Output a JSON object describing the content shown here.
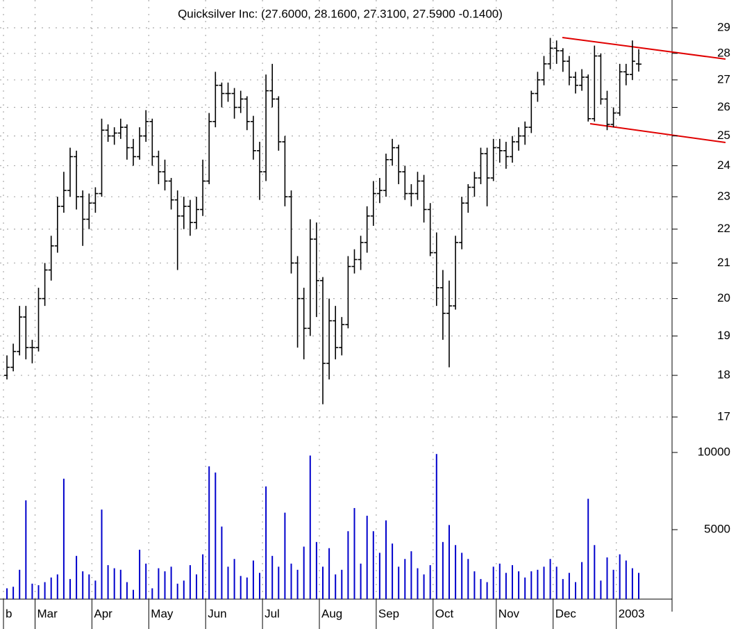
{
  "chart_data": {
    "type": "ohlc",
    "subtitle": "Quicksilver Inc: (27.6000, 28.1600, 27.3100, 27.5900 -0.1400)",
    "categories": [
      "b",
      null,
      null,
      null,
      null,
      "Mar",
      null,
      null,
      null,
      null,
      null,
      null,
      null,
      null,
      "Apr",
      null,
      null,
      null,
      null,
      null,
      null,
      null,
      null,
      "May",
      null,
      null,
      null,
      null,
      null,
      null,
      null,
      null,
      "Jun",
      null,
      null,
      null,
      null,
      null,
      null,
      null,
      null,
      "Jul",
      null,
      null,
      null,
      null,
      null,
      null,
      null,
      null,
      "Aug",
      null,
      null,
      null,
      null,
      null,
      null,
      null,
      null,
      "Sep",
      null,
      null,
      null,
      null,
      null,
      null,
      null,
      null,
      "Oct",
      null,
      null,
      null,
      null,
      null,
      null,
      null,
      null,
      null,
      "Nov",
      null,
      null,
      null,
      null,
      null,
      null,
      null,
      null,
      "Dec",
      null,
      null,
      null,
      null,
      null,
      null,
      null,
      null,
      null,
      "2003",
      null,
      null,
      null
    ],
    "ohlc": [
      [
        18.0,
        18.5,
        17.9,
        18.2
      ],
      [
        18.2,
        18.8,
        18.1,
        18.6
      ],
      [
        18.6,
        19.8,
        18.5,
        19.5
      ],
      [
        19.5,
        19.8,
        18.4,
        18.7
      ],
      [
        18.7,
        18.9,
        18.3,
        18.7
      ],
      [
        18.7,
        20.3,
        18.6,
        20.0
      ],
      [
        20.0,
        21.0,
        19.8,
        20.8
      ],
      [
        20.8,
        21.8,
        20.5,
        21.5
      ],
      [
        21.5,
        23.0,
        21.3,
        22.7
      ],
      [
        22.7,
        23.8,
        22.5,
        23.2
      ],
      [
        23.2,
        24.6,
        23.0,
        24.3
      ],
      [
        24.3,
        24.5,
        22.6,
        23.0
      ],
      [
        23.0,
        23.2,
        21.5,
        22.3
      ],
      [
        22.3,
        23.1,
        22.0,
        22.8
      ],
      [
        22.8,
        23.3,
        22.5,
        23.1
      ],
      [
        23.1,
        25.6,
        23.0,
        25.2
      ],
      [
        25.2,
        25.4,
        24.8,
        25.0
      ],
      [
        25.0,
        25.3,
        24.7,
        25.1
      ],
      [
        25.1,
        25.6,
        24.9,
        25.3
      ],
      [
        25.3,
        25.4,
        24.2,
        24.6
      ],
      [
        24.6,
        24.9,
        24.0,
        24.3
      ],
      [
        24.3,
        25.3,
        24.2,
        25.0
      ],
      [
        25.0,
        25.9,
        24.8,
        25.5
      ],
      [
        25.5,
        25.6,
        24.0,
        24.3
      ],
      [
        24.3,
        24.5,
        23.4,
        23.8
      ],
      [
        23.8,
        24.2,
        23.2,
        23.5
      ],
      [
        23.5,
        23.6,
        22.6,
        22.9
      ],
      [
        22.9,
        23.2,
        20.8,
        22.4
      ],
      [
        22.4,
        23.0,
        22.0,
        22.7
      ],
      [
        22.7,
        22.9,
        21.8,
        22.2
      ],
      [
        22.2,
        23.0,
        22.0,
        22.6
      ],
      [
        22.6,
        24.2,
        22.4,
        23.5
      ],
      [
        23.5,
        25.8,
        23.4,
        25.5
      ],
      [
        25.5,
        27.3,
        25.3,
        26.8
      ],
      [
        26.8,
        26.9,
        26.0,
        26.5
      ],
      [
        26.5,
        26.9,
        26.2,
        26.5
      ],
      [
        26.5,
        26.7,
        25.6,
        26.0
      ],
      [
        26.0,
        26.6,
        25.8,
        26.3
      ],
      [
        26.3,
        26.4,
        25.2,
        25.5
      ],
      [
        25.5,
        25.7,
        24.2,
        24.5
      ],
      [
        24.5,
        24.8,
        22.9,
        23.8
      ],
      [
        23.8,
        27.2,
        23.5,
        26.6
      ],
      [
        26.6,
        27.6,
        26.0,
        26.3
      ],
      [
        26.3,
        26.4,
        24.5,
        24.8
      ],
      [
        24.8,
        25.0,
        22.7,
        23.0
      ],
      [
        23.0,
        23.2,
        20.7,
        21.0
      ],
      [
        21.0,
        21.2,
        18.7,
        20.0
      ],
      [
        20.0,
        20.3,
        18.4,
        19.2
      ],
      [
        19.2,
        22.3,
        19.0,
        21.7
      ],
      [
        21.7,
        22.2,
        19.5,
        20.5
      ],
      [
        20.5,
        20.6,
        17.3,
        18.3
      ],
      [
        18.3,
        20.0,
        17.9,
        19.4
      ],
      [
        19.4,
        19.8,
        18.4,
        18.7
      ],
      [
        18.7,
        19.5,
        18.5,
        19.3
      ],
      [
        19.3,
        21.2,
        19.2,
        20.9
      ],
      [
        20.9,
        21.4,
        20.7,
        21.1
      ],
      [
        21.1,
        21.8,
        20.8,
        21.6
      ],
      [
        21.6,
        22.7,
        21.3,
        22.4
      ],
      [
        22.4,
        23.5,
        22.1,
        23.1
      ],
      [
        23.1,
        23.6,
        22.8,
        23.2
      ],
      [
        23.2,
        24.4,
        23.0,
        24.2
      ],
      [
        24.2,
        24.9,
        24.0,
        24.6
      ],
      [
        24.6,
        24.7,
        23.4,
        23.8
      ],
      [
        23.8,
        24.0,
        22.9,
        23.1
      ],
      [
        23.1,
        23.4,
        22.7,
        23.1
      ],
      [
        23.1,
        23.8,
        22.9,
        23.5
      ],
      [
        23.5,
        23.7,
        22.2,
        22.6
      ],
      [
        22.6,
        22.8,
        21.2,
        21.3
      ],
      [
        21.3,
        21.9,
        19.8,
        20.3
      ],
      [
        20.3,
        20.8,
        18.9,
        19.6
      ],
      [
        19.6,
        20.5,
        18.2,
        19.8
      ],
      [
        19.8,
        21.8,
        19.7,
        21.6
      ],
      [
        21.6,
        23.0,
        21.4,
        22.8
      ],
      [
        22.8,
        23.4,
        22.5,
        23.3
      ],
      [
        23.3,
        23.8,
        23.0,
        23.6
      ],
      [
        23.6,
        24.6,
        23.4,
        24.4
      ],
      [
        24.4,
        24.6,
        22.7,
        23.6
      ],
      [
        23.6,
        24.9,
        23.5,
        24.6
      ],
      [
        24.6,
        24.9,
        24.1,
        24.5
      ],
      [
        24.5,
        24.8,
        23.9,
        24.3
      ],
      [
        24.3,
        25.0,
        24.1,
        24.8
      ],
      [
        24.8,
        25.3,
        24.5,
        25.0
      ],
      [
        25.0,
        25.5,
        24.7,
        25.3
      ],
      [
        25.3,
        26.6,
        25.1,
        26.5
      ],
      [
        26.5,
        27.3,
        26.2,
        27.0
      ],
      [
        27.0,
        27.9,
        26.8,
        27.6
      ],
      [
        27.6,
        28.6,
        27.4,
        28.2
      ],
      [
        28.2,
        28.5,
        27.6,
        28.1
      ],
      [
        28.1,
        28.2,
        27.3,
        27.7
      ],
      [
        27.7,
        27.9,
        26.8,
        27.1
      ],
      [
        27.1,
        27.3,
        26.5,
        26.8
      ],
      [
        26.8,
        27.4,
        26.6,
        27.1
      ],
      [
        27.1,
        27.2,
        25.5,
        25.6
      ],
      [
        25.6,
        28.3,
        25.5,
        27.9
      ],
      [
        27.9,
        28.0,
        26.1,
        26.3
      ],
      [
        26.3,
        26.6,
        25.2,
        25.4
      ],
      [
        25.4,
        26.0,
        25.3,
        25.8
      ],
      [
        25.8,
        27.6,
        25.7,
        27.3
      ],
      [
        27.3,
        27.6,
        26.8,
        27.2
      ],
      [
        27.2,
        28.5,
        27.0,
        27.7
      ],
      [
        27.6,
        28.16,
        27.31,
        27.59
      ]
    ],
    "color": "#000000",
    "ylim": [
      17,
      29
    ],
    "log_y": true,
    "yticks": [
      17,
      18,
      19,
      20,
      21,
      22,
      23,
      24,
      25,
      26,
      27,
      28,
      29
    ],
    "volume": {
      "color": "#0000cc",
      "values": [
        1200,
        1300,
        2400,
        6900,
        1500,
        1400,
        1600,
        1900,
        2100,
        8300,
        1800,
        3300,
        2300,
        2100,
        1700,
        6300,
        2700,
        2500,
        2400,
        1600,
        1100,
        3700,
        2800,
        1200,
        2500,
        2300,
        2600,
        1500,
        1700,
        2700,
        2100,
        3400,
        9100,
        8700,
        5200,
        2600,
        3100,
        2000,
        1900,
        3000,
        2200,
        7800,
        3300,
        2600,
        6100,
        2800,
        2400,
        3900,
        9800,
        4200,
        2600,
        3800,
        2100,
        2400,
        4900,
        6400,
        2800,
        5900,
        4900,
        3500,
        5600,
        4100,
        2600,
        3100,
        3600,
        2500,
        2100,
        2700,
        9900,
        4200,
        5300,
        4000,
        3500,
        3100,
        2300,
        1800,
        1600,
        2600,
        2800,
        2200,
        2700,
        2300,
        1900,
        2300,
        2400,
        2600,
        3100,
        2600,
        1800,
        2200,
        1600,
        2900,
        7000,
        4000,
        1700,
        3200,
        2400,
        3400,
        3000,
        2500,
        2200
      ],
      "ylim": [
        500,
        10000
      ],
      "yticks": [
        5000,
        10000
      ]
    },
    "grid": true
  }
}
